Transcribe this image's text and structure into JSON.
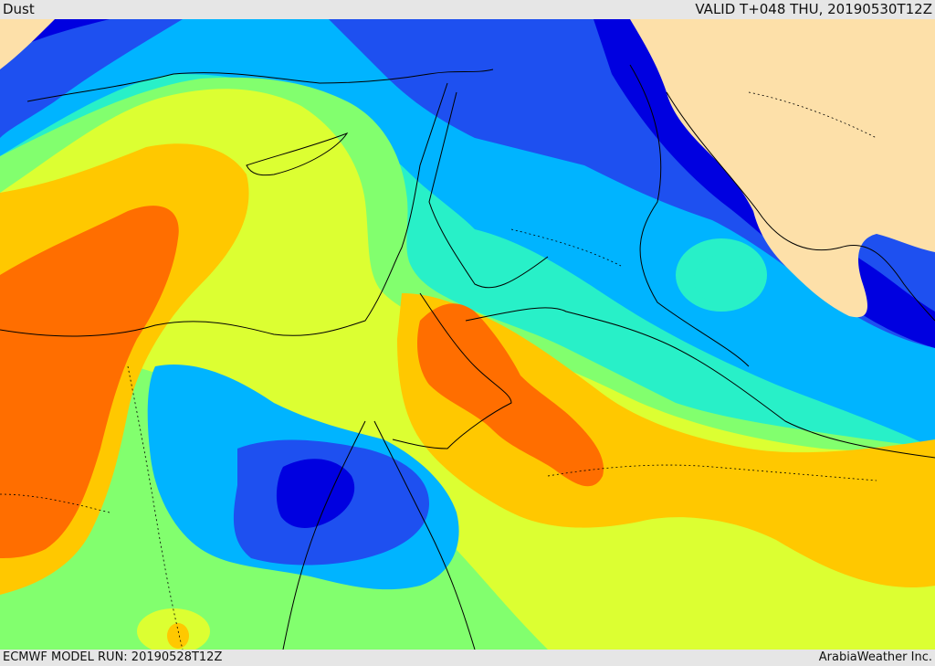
{
  "header": {
    "product": "Dust",
    "valid": "VALID T+048 THU, 20190530T12Z"
  },
  "footer": {
    "model_run": "ECMWF MODEL RUN: 20190528T12Z",
    "credit": "ArabiaWeather Inc."
  },
  "palette": {
    "land_background": "#fde0a9",
    "level_1": "#0000e0",
    "level_2": "#1e50f0",
    "level_3": "#00b4ff",
    "level_4": "#28f0c8",
    "level_5": "#82ff6e",
    "level_6": "#dcff32",
    "level_7": "#ffc800",
    "level_8": "#ff6e00",
    "coastline": "#000000",
    "borders": "#000000"
  }
}
